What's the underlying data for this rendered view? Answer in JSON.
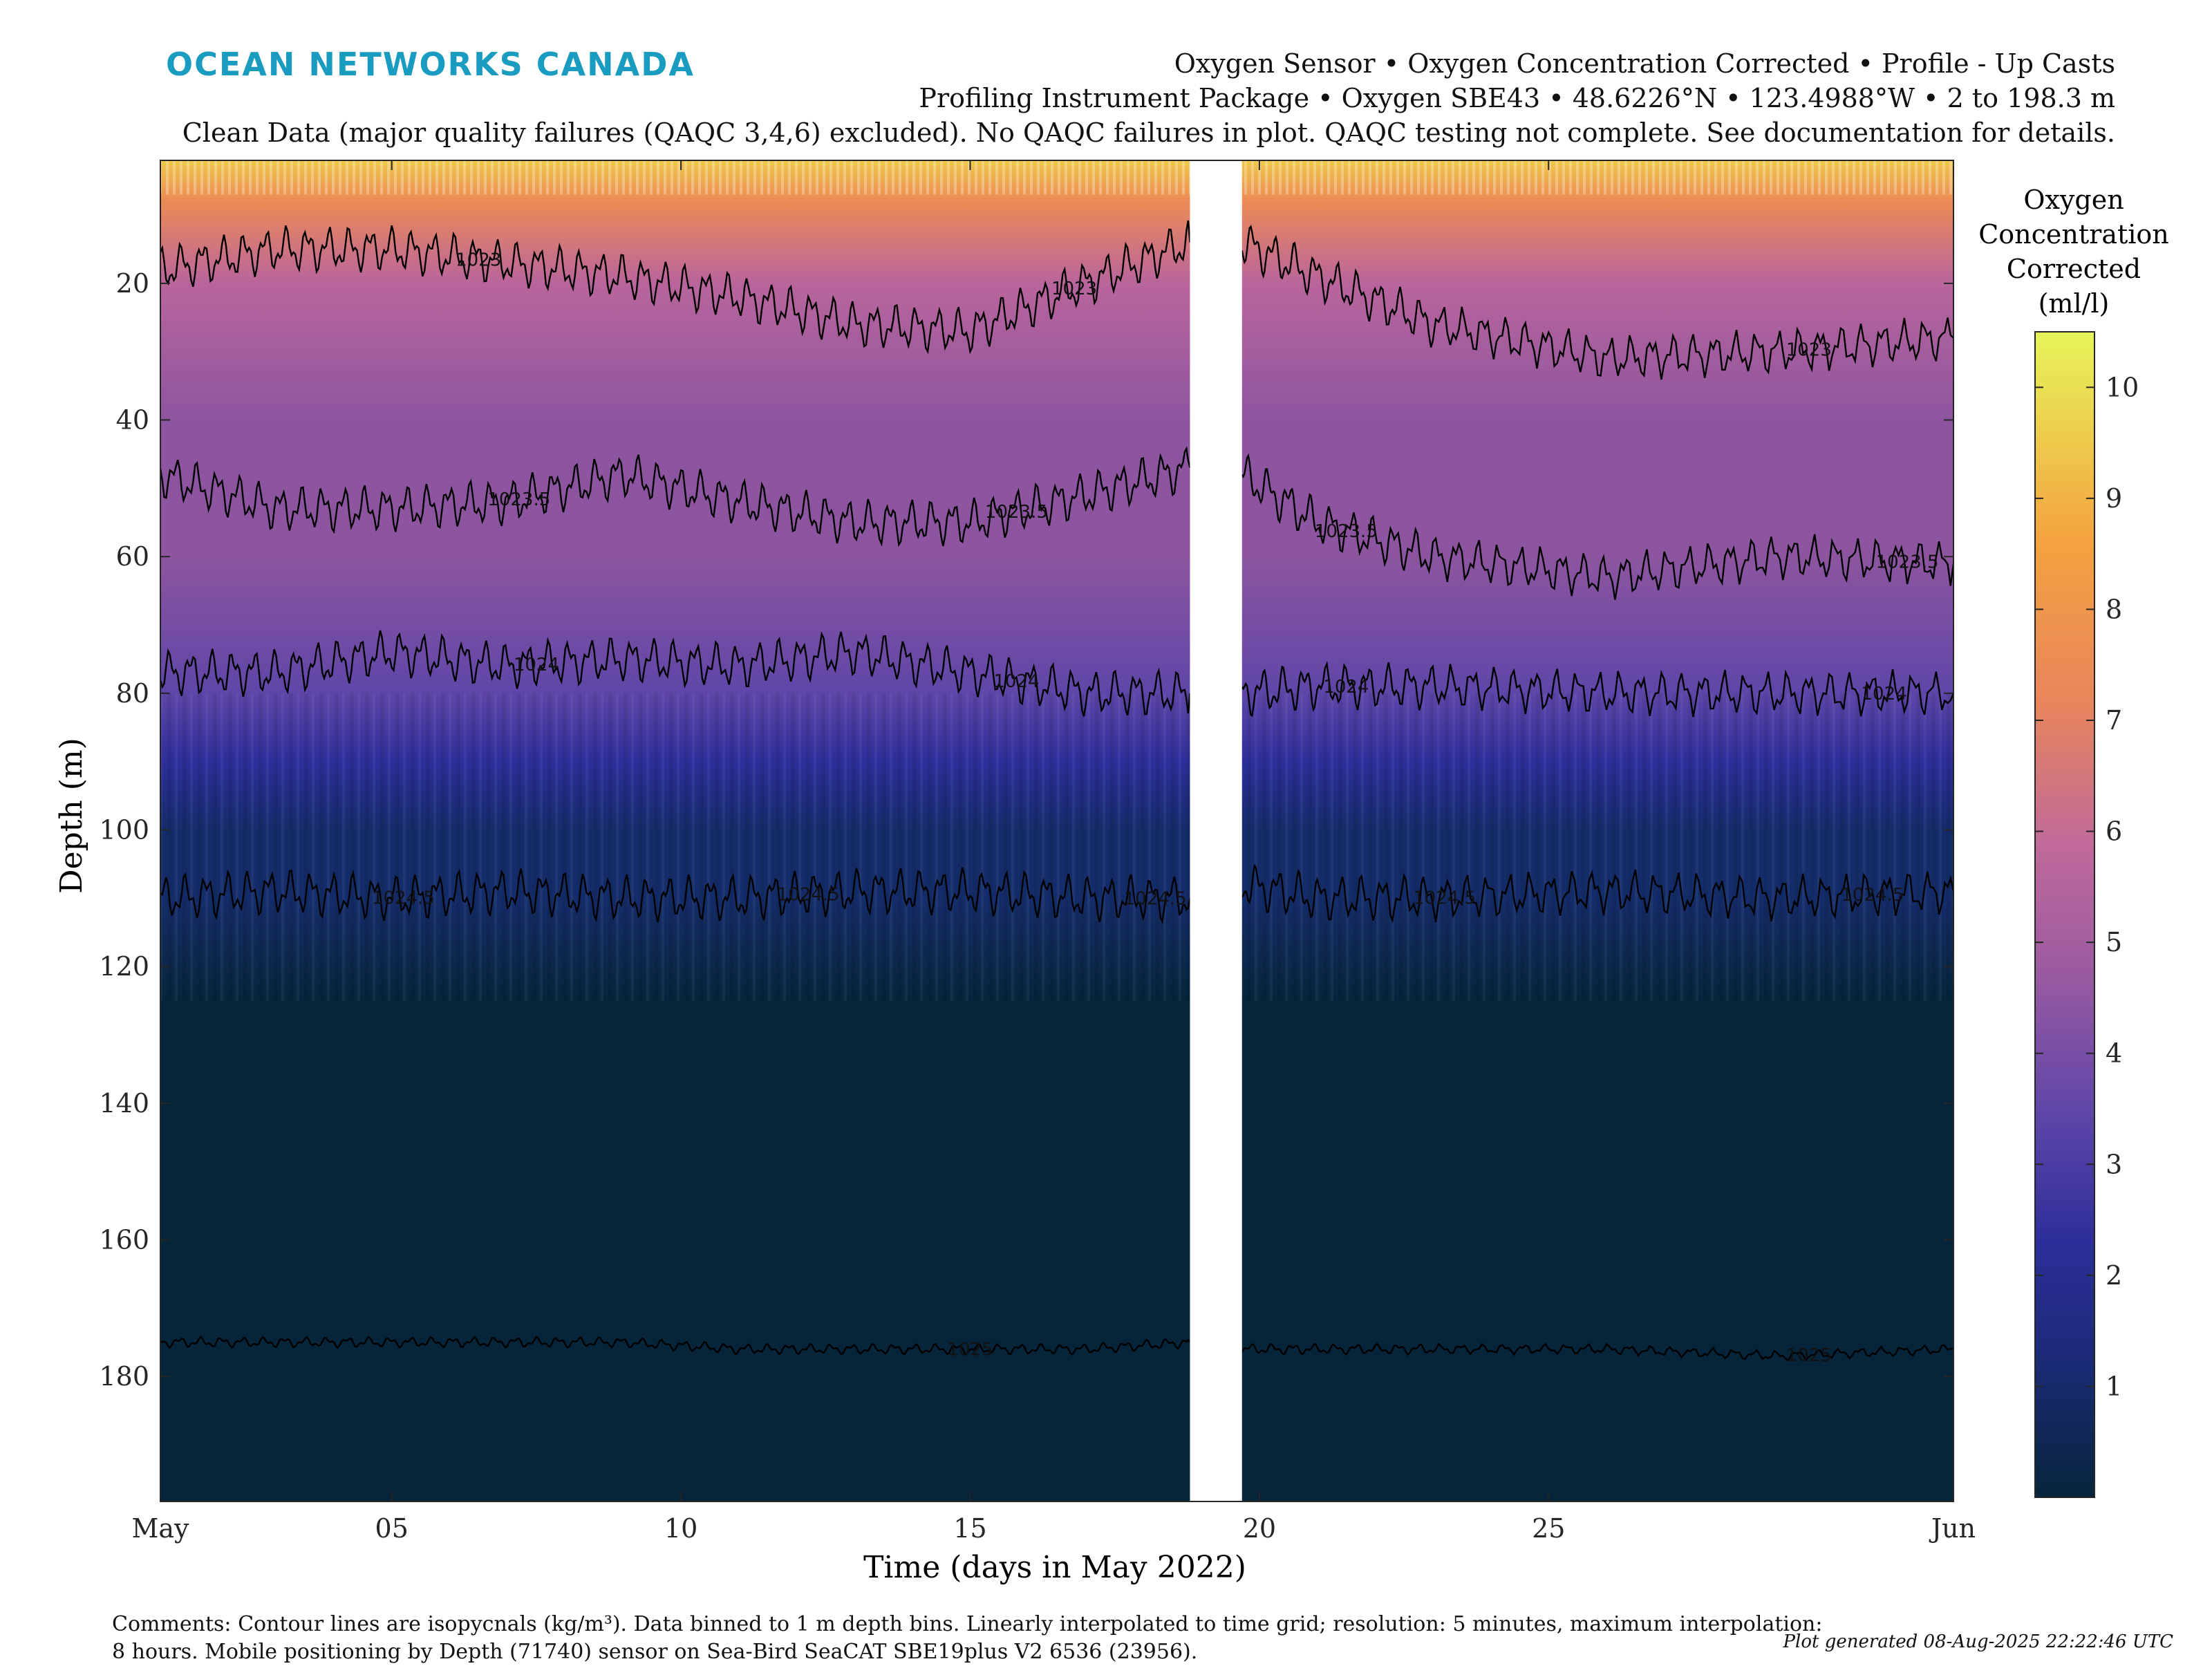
{
  "header": {
    "brand": "OCEAN NETWORKS CANADA",
    "title_line_1": "Oxygen Sensor • Oxygen Concentration Corrected • Profile - Up Casts",
    "title_line_2": "Profiling Instrument Package • Oxygen SBE43 • 48.6226°N • 123.4988°W • 2 to 198.3 m",
    "title_line_3": "Clean Data (major quality failures (QAQC 3,4,6) excluded). No QAQC failures in plot. QAQC testing not complete. See documentation for details."
  },
  "footer": {
    "comments_line_1": "Comments: Contour lines are isopycnals (kg/m³). Data binned to 1 m depth bins. Linearly interpolated to time grid; resolution: 5 minutes, maximum interpolation:",
    "comments_line_2": "8 hours. Mobile positioning by Depth (71740) sensor on Sea-Bird SeaCAT SBE19plus V2 6536 (23956).",
    "generated": "Plot generated 08-Aug-2025 22:22:46 UTC"
  },
  "colors": {
    "deep": "#06253a",
    "low": "#2d2e9a",
    "mid_low": "#5e46a8",
    "mid": "#9a5aa0",
    "mid_high": "#c06a9a",
    "high": "#e8845c",
    "top": "#e6f55a",
    "contour": "#000000"
  },
  "chart_data": {
    "type": "heatmap",
    "xlabel": "Time (days in May 2022)",
    "ylabel": "Depth (m)",
    "x_ticks": [
      "May",
      "05",
      "10",
      "15",
      "20",
      "25",
      "Jun"
    ],
    "x_tick_days": [
      1,
      5,
      10,
      15,
      20,
      25,
      32
    ],
    "xlim": [
      1,
      32
    ],
    "y_ticks": [
      "20",
      "40",
      "60",
      "80",
      "100",
      "120",
      "140",
      "160",
      "180"
    ],
    "y_tick_values": [
      20,
      40,
      60,
      80,
      100,
      120,
      140,
      160,
      180
    ],
    "ylim": [
      2,
      198.3
    ],
    "y_reversed": true,
    "data_gap_days": [
      18.8,
      19.7
    ],
    "colorbar": {
      "label_lines": [
        "Oxygen",
        "Concentration",
        "Corrected",
        "(ml/l)"
      ],
      "ticks": [
        "1",
        "2",
        "3",
        "4",
        "5",
        "6",
        "7",
        "8",
        "9",
        "10"
      ],
      "tick_values": [
        1,
        2,
        3,
        4,
        5,
        6,
        7,
        8,
        9,
        10
      ],
      "range": [
        0,
        10.5
      ]
    },
    "oxygen_depth_profile": {
      "depths": [
        2,
        8,
        20,
        40,
        60,
        80,
        90,
        100,
        110,
        125,
        198
      ],
      "values": [
        9.5,
        6.5,
        5.3,
        4.4,
        3.9,
        3.3,
        2.2,
        1.0,
        0.5,
        0.1,
        0.1
      ]
    },
    "isopycnals": [
      {
        "label": "1023",
        "depth_m": [
          18,
          15,
          15,
          17,
          19,
          22,
          26,
          27,
          20,
          14,
          14,
          19,
          26,
          31,
          30,
          28
        ],
        "label_positions": [
          {
            "day": 6.5
          },
          {
            "day": 16.8
          },
          {
            "day": 29.5
          }
        ]
      },
      {
        "label": "1023.5",
        "depth_m": [
          48,
          53,
          53,
          52,
          48,
          52,
          55,
          55,
          51,
          47,
          48,
          55,
          60,
          63,
          60,
          61
        ],
        "label_positions": [
          {
            "day": 7.2
          },
          {
            "day": 15.8
          },
          {
            "day": 21.5
          },
          {
            "day": 31.2
          }
        ]
      },
      {
        "label": "1024",
        "depth_m": [
          77,
          77,
          74,
          76,
          75,
          76,
          74,
          77,
          80,
          80,
          80,
          79,
          79,
          80,
          80,
          80
        ],
        "label_positions": [
          {
            "day": 7.5
          },
          {
            "day": 15.8
          },
          {
            "day": 21.5
          },
          {
            "day": 30.8
          }
        ]
      },
      {
        "label": "1024.5",
        "depth_m": [
          110,
          109,
          110,
          109,
          110,
          110,
          109,
          109,
          110,
          110,
          108,
          110,
          110,
          109,
          110,
          109
        ],
        "label_positions": [
          {
            "day": 5.2
          },
          {
            "day": 12.2
          },
          {
            "day": 18.2
          },
          {
            "day": 23.2
          },
          {
            "day": 30.6
          }
        ]
      },
      {
        "label": "1025",
        "depth_m": [
          175,
          175,
          175,
          175,
          175,
          176,
          176,
          176,
          176,
          175,
          176,
          176,
          176,
          176,
          177,
          176
        ],
        "label_positions": [
          {
            "day": 15.0
          },
          {
            "day": 29.5
          }
        ]
      }
    ],
    "isopycnal_days": [
      1,
      3,
      5,
      7,
      9,
      11,
      13,
      15,
      17,
      18.8,
      19.7,
      21,
      23,
      26,
      29,
      32
    ]
  }
}
